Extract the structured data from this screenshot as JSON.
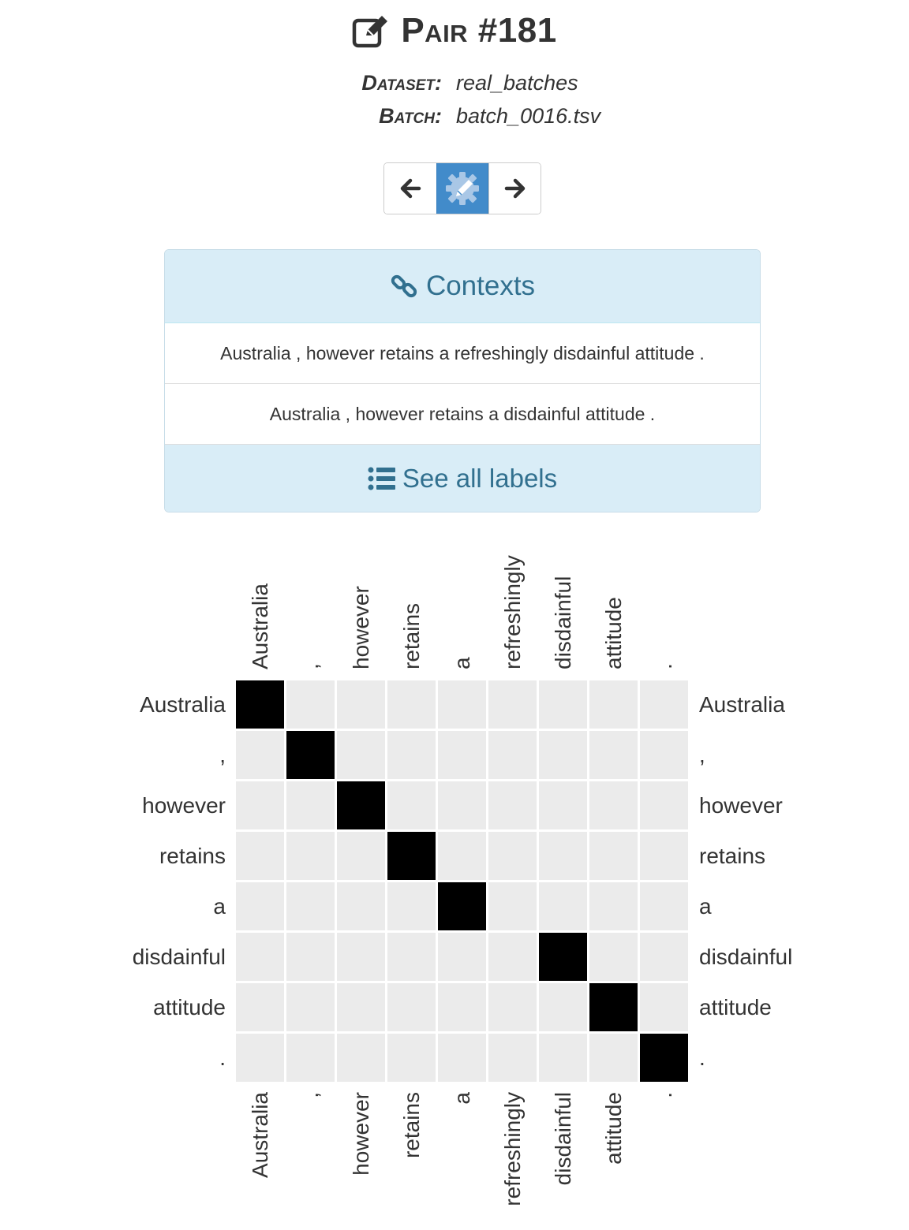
{
  "header": {
    "title": "Pair #181",
    "dataset_label": "Dataset:",
    "dataset_value": "real_batches",
    "batch_label": "Batch:",
    "batch_value": "batch_0016.tsv"
  },
  "nav": {
    "prev_icon": "arrow-left-icon",
    "edit_icon": "gear-pencil-icon",
    "next_icon": "arrow-right-icon"
  },
  "contexts": {
    "heading": "Contexts",
    "items": [
      "Australia , however retains a refreshingly disdainful attitude .",
      "Australia , however retains a disdainful attitude ."
    ],
    "see_all_label": "See all labels"
  },
  "colors": {
    "accent": "#428bca",
    "panel_bg": "#d9edf7",
    "panel_text": "#31708f",
    "cell_on": "#000000",
    "cell_off": "#ebebeb"
  },
  "chart_data": {
    "type": "heatmap",
    "columns": [
      "Australia",
      ",",
      "however",
      "retains",
      "a",
      "refreshingly",
      "disdainful",
      "attitude",
      "."
    ],
    "rows": [
      "Australia",
      ",",
      "however",
      "retains",
      "a",
      "disdainful",
      "attitude",
      "."
    ],
    "values": [
      [
        1,
        0,
        0,
        0,
        0,
        0,
        0,
        0,
        0
      ],
      [
        0,
        1,
        0,
        0,
        0,
        0,
        0,
        0,
        0
      ],
      [
        0,
        0,
        1,
        0,
        0,
        0,
        0,
        0,
        0
      ],
      [
        0,
        0,
        0,
        1,
        0,
        0,
        0,
        0,
        0
      ],
      [
        0,
        0,
        0,
        0,
        1,
        0,
        0,
        0,
        0
      ],
      [
        0,
        0,
        0,
        0,
        0,
        0,
        1,
        0,
        0
      ],
      [
        0,
        0,
        0,
        0,
        0,
        0,
        0,
        1,
        0
      ],
      [
        0,
        0,
        0,
        0,
        0,
        0,
        0,
        0,
        1
      ]
    ]
  }
}
